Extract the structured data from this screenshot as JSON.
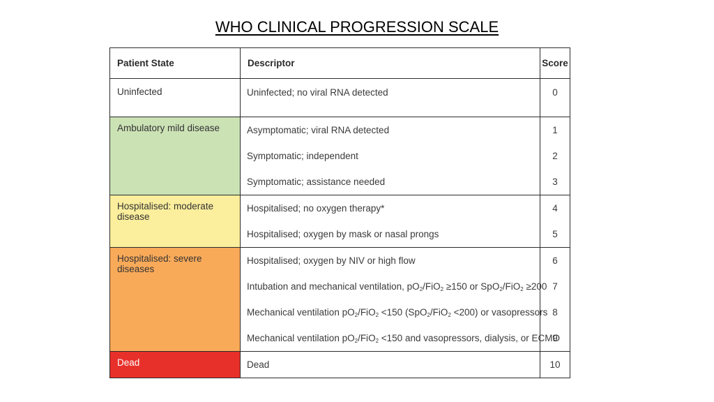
{
  "title": "WHO CLINICAL PROGRESSION SCALE",
  "table": {
    "headers": {
      "patient_state": "Patient State",
      "descriptor": "Descriptor",
      "score": "Score"
    },
    "groups": [
      {
        "state": "Uninfected",
        "color": "#ffffff",
        "rows": [
          {
            "descriptor": "Uninfected;  no viral RNA detected",
            "score": "0"
          }
        ]
      },
      {
        "state": "Ambulatory mild disease",
        "color": "#cbe2b5",
        "rows": [
          {
            "descriptor": "Asymptomatic; viral RNA detected",
            "score": "1"
          },
          {
            "descriptor": "Symptomatic; independent",
            "score": "2"
          },
          {
            "descriptor": "Symptomatic; assistance needed",
            "score": "3"
          }
        ]
      },
      {
        "state": "Hospitalised: moderate disease",
        "color": "#fbee9c",
        "rows": [
          {
            "descriptor": "Hospitalised; no oxygen therapy*",
            "score": "4"
          },
          {
            "descriptor": "Hospitalised; oxygen by mask or nasal prongs",
            "score": "5"
          }
        ]
      },
      {
        "state": "Hospitalised: severe diseases",
        "color": "#f9aa59",
        "rows": [
          {
            "descriptor": "Hospitalised; oxygen by NIV or high flow",
            "score": "6"
          },
          {
            "descriptor": "Intubation and mechanical ventilation, pO2/FiO2 ≥150 or SpO2/FiO2 ≥200",
            "score": "7"
          },
          {
            "descriptor": "Mechanical ventilation pO2/FiO2 <150 (SpO2/FiO2 <200) or vasopressors",
            "score": "8"
          },
          {
            "descriptor": "Mechanical ventilation pO2/FiO2 <150 and vasopressors, dialysis, or ECMO",
            "score": "9"
          }
        ]
      },
      {
        "state": "Dead",
        "color": "#e8302a",
        "rows": [
          {
            "descriptor": "Dead",
            "score": "10"
          }
        ]
      }
    ]
  }
}
